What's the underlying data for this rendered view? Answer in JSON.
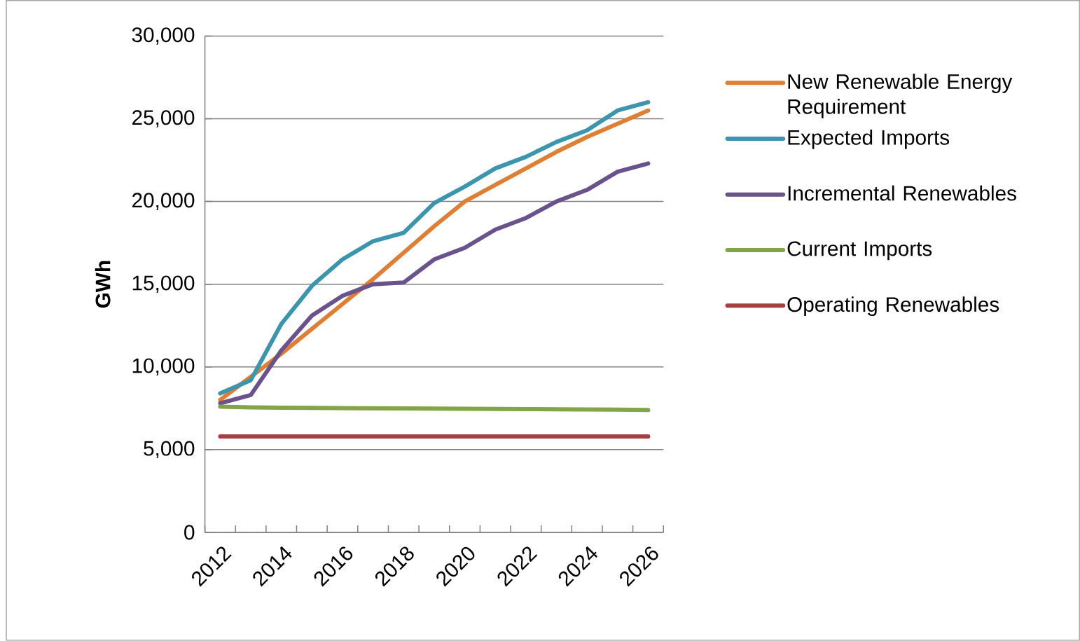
{
  "chart_data": {
    "type": "line",
    "ylabel": "**GWh**",
    "categories": [
      "2012",
      null,
      "2014",
      null,
      "2016",
      null,
      "2018",
      null,
      "2020",
      null,
      "2022",
      null,
      "2024",
      null,
      "2026"
    ],
    "ylim": [
      0,
      30000
    ],
    "yticks": [
      {
        "value": 0,
        "label": "0"
      },
      {
        "value": 5000,
        "label": "5,000"
      },
      {
        "value": 10000,
        "label": "10,000"
      },
      {
        "value": 15000,
        "label": "15,000"
      },
      {
        "value": 20000,
        "label": "20,000"
      },
      {
        "value": 25000,
        "label": "25,000"
      },
      {
        "value": 30000,
        "label": "30,000"
      }
    ],
    "grid": "y",
    "legend": "right",
    "marker": "none",
    "line_style": "solid",
    "series": [
      {
        "name": "New Renewable Energy Requirement",
        "color": "#dd7f35",
        "values": [
          8000,
          9400,
          10800,
          12300,
          13800,
          15300,
          16900,
          18500,
          20000,
          21000,
          22000,
          23000,
          23900,
          24700,
          25500
        ]
      },
      {
        "name": "Expected Imports",
        "color": "#3d95ad",
        "values": [
          8400,
          9200,
          12600,
          14900,
          16500,
          17600,
          18100,
          19900,
          20900,
          22000,
          22700,
          23600,
          24300,
          25500,
          26000
        ]
      },
      {
        "name": "Incremental Renewables",
        "color": "#6a528c",
        "values": [
          7800,
          8300,
          11000,
          13100,
          14300,
          15000,
          15100,
          16500,
          17200,
          18300,
          19000,
          20000,
          20700,
          21800,
          22300
        ]
      },
      {
        "name": "Current Imports",
        "color": "#84a448",
        "values": [
          7600,
          7550,
          7530,
          7520,
          7510,
          7500,
          7490,
          7480,
          7470,
          7460,
          7450,
          7440,
          7430,
          7420,
          7400
        ]
      },
      {
        "name": "Operating Renewables",
        "color": "#a63f3f",
        "values": [
          5800,
          5800,
          5800,
          5800,
          5800,
          5800,
          5800,
          5800,
          5800,
          5800,
          5800,
          5800,
          5800,
          5800,
          5800
        ]
      }
    ]
  }
}
